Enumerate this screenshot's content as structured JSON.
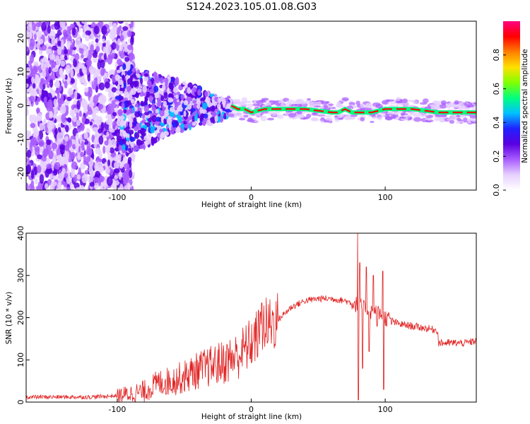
{
  "figure": {
    "title": "S124.2023.105.01.08.G03"
  },
  "colors": {
    "snr_line": "#e02020",
    "colormap": [
      "#ffffff",
      "#e6d0ff",
      "#a95cff",
      "#5a00e0",
      "#2020ff",
      "#00c0ff",
      "#00ff80",
      "#80ff00",
      "#ffe000",
      "#ff8000",
      "#ff0000",
      "#ff0080"
    ]
  },
  "chart_data": [
    {
      "type": "heatmap",
      "title": "",
      "xlabel": "Height of straight line (km)",
      "ylabel": "Frequency (Hz)",
      "xlim": [
        -168,
        168
      ],
      "ylim": [
        -25,
        25
      ],
      "x_ticks": [
        -100,
        0,
        100
      ],
      "x_tick_labels": [
        "-100",
        "0",
        "100"
      ],
      "y_ticks": [
        -20,
        -10,
        0,
        10,
        20
      ],
      "y_tick_labels": [
        "-20",
        "-10",
        "0",
        "10",
        "20"
      ],
      "ridge": {
        "x": [
          -100,
          -80,
          -60,
          -40,
          -30,
          -20,
          -15,
          -10,
          -5,
          0,
          10,
          20,
          40,
          60,
          65,
          70,
          75,
          80,
          90,
          100,
          110,
          120,
          140,
          168
        ],
        "freq_hz": [
          -1,
          -1,
          0,
          0,
          -1,
          -1,
          0,
          -1,
          -1,
          -2,
          -1,
          -1,
          -1,
          -2,
          -2,
          -1,
          -2,
          -2,
          -2,
          -1,
          -1,
          -1,
          -2,
          -2
        ]
      },
      "colorbar": {
        "label": "Normalized spectral amplitude",
        "range": [
          0,
          1
        ],
        "ticks": [
          0.0,
          0.2,
          0.4,
          0.6,
          0.8
        ],
        "tick_labels": [
          "0.0",
          "0.2",
          "0.4",
          "0.6",
          "0.8"
        ]
      }
    },
    {
      "type": "line",
      "title": "",
      "xlabel": "Height of straight line (km)",
      "ylabel": "SNR (10 * v/v)",
      "xlim": [
        -168,
        168
      ],
      "ylim": [
        0,
        400
      ],
      "x_ticks": [
        -100,
        0,
        100
      ],
      "x_tick_labels": [
        "-100",
        "0",
        "100"
      ],
      "y_ticks": [
        0,
        100,
        200,
        300,
        400
      ],
      "y_tick_labels": [
        "0",
        "100",
        "200",
        "300",
        "400"
      ],
      "envelope": {
        "x": [
          -168,
          -120,
          -100,
          -80,
          -70,
          -60,
          -50,
          -40,
          -30,
          -20,
          -10,
          0,
          10,
          20,
          30,
          40,
          50,
          60,
          70,
          75,
          80,
          85,
          90,
          95,
          100,
          110,
          120,
          130,
          139,
          140,
          150,
          160,
          168
        ],
        "y": [
          12,
          12,
          15,
          25,
          45,
          50,
          60,
          75,
          85,
          95,
          110,
          140,
          180,
          195,
          225,
          240,
          245,
          245,
          240,
          235,
          230,
          220,
          215,
          210,
          200,
          185,
          180,
          175,
          170,
          140,
          140,
          140,
          145
        ]
      },
      "spikes": [
        {
          "x": 79.5,
          "y": 400
        },
        {
          "x": 80,
          "y": 5
        },
        {
          "x": 81,
          "y": 330
        },
        {
          "x": 83,
          "y": 80
        },
        {
          "x": 86,
          "y": 320
        },
        {
          "x": 88,
          "y": 120
        },
        {
          "x": 91,
          "y": 300
        },
        {
          "x": 94,
          "y": 180
        },
        {
          "x": 98,
          "y": 310
        },
        {
          "x": 99,
          "y": 30
        },
        {
          "x": 12,
          "y": 140
        },
        {
          "x": 8,
          "y": 235
        }
      ]
    }
  ]
}
